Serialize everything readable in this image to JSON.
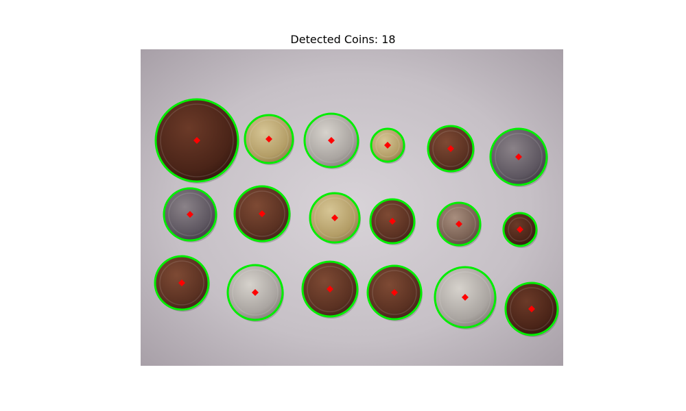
{
  "figure": {
    "title": "Detected Coins: 18"
  },
  "detection": {
    "coin_count": 18,
    "circle_color": "#00ee00",
    "center_marker_color": "#ff0000"
  },
  "colors": {
    "background_paper": "#c9c3c9",
    "coin_copper_dark": "#4a2418",
    "coin_brass": "#b8a36c",
    "coin_silver": "#a9a4a0"
  }
}
